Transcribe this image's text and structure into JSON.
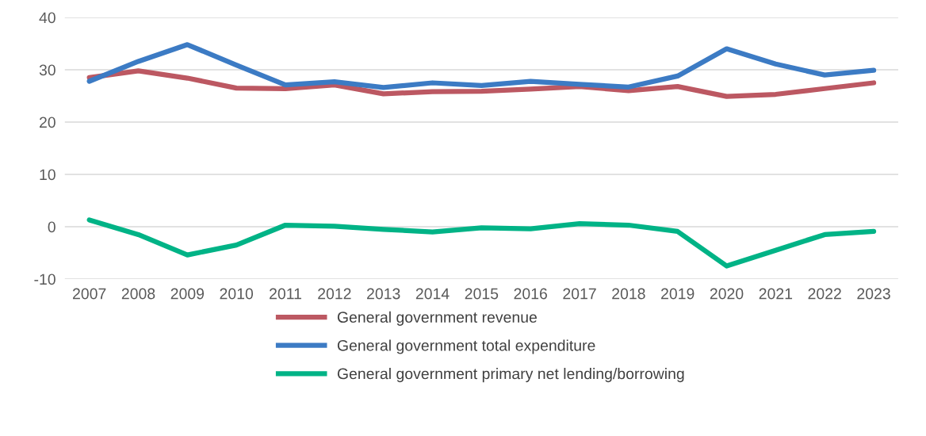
{
  "chart_data": {
    "type": "line",
    "categories": [
      "2007",
      "2008",
      "2009",
      "2010",
      "2011",
      "2012",
      "2013",
      "2014",
      "2015",
      "2016",
      "2017",
      "2018",
      "2019",
      "2020",
      "2021",
      "2022",
      "2023"
    ],
    "series": [
      {
        "name": "General government revenue",
        "color": "#bc5862",
        "values": [
          28.5,
          29.8,
          28.4,
          26.5,
          26.4,
          27.1,
          25.4,
          25.8,
          25.9,
          26.3,
          26.8,
          26.0,
          26.8,
          24.9,
          25.3,
          26.4,
          27.5
        ]
      },
      {
        "name": "General government total expenditure",
        "color": "#3c7bc4",
        "values": [
          27.8,
          31.6,
          34.8,
          30.9,
          27.1,
          27.7,
          26.6,
          27.5,
          27.0,
          27.8,
          27.2,
          26.7,
          28.8,
          34.0,
          31.1,
          29.0,
          29.9
        ]
      },
      {
        "name": "General government primary net lending/borrowing",
        "color": "#00b386",
        "values": [
          1.3,
          -1.5,
          -5.4,
          -3.5,
          0.3,
          0.1,
          -0.5,
          -1.0,
          -0.2,
          -0.4,
          0.6,
          0.3,
          -0.9,
          -7.5,
          -4.5,
          -1.5,
          -0.9
        ]
      }
    ],
    "ylim": [
      -10,
      40
    ],
    "yticks": [
      -10,
      0,
      10,
      20,
      30,
      40
    ],
    "grid": "y",
    "legend": "bottom",
    "marker": "none",
    "line_style": "solid"
  }
}
